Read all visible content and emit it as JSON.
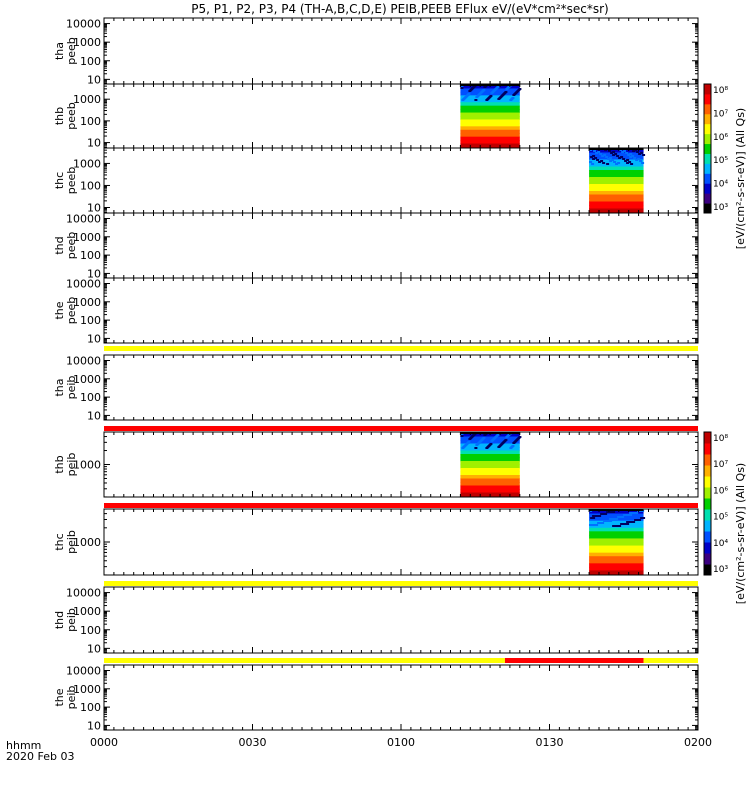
{
  "chart_data": {
    "type": "heatmap",
    "title": "P5, P1, P2, P3, P4 (TH-A,B,C,D,E) PEIB,PEEB EFlux eV/(eV*cm²*sec*sr)",
    "time_axis": {
      "label_line1": "hhmm",
      "label_line2": "2020 Feb 03",
      "ticks": [
        "0000",
        "0030",
        "0100",
        "0130",
        "0200"
      ],
      "range_minutes": [
        0,
        120
      ]
    },
    "panels": [
      {
        "probe": "tha",
        "instrument": "peeb",
        "ylabel_line1": "tha",
        "ylabel_line2": "peeb",
        "yticks": [
          "10",
          "100",
          "1000",
          "10000"
        ],
        "ylog_range": [
          0.75,
          4.3
        ],
        "data_spans_minutes": []
      },
      {
        "probe": "thb",
        "instrument": "peeb",
        "ylabel_line1": "thb",
        "ylabel_line2": "peeb",
        "yticks": [
          "10",
          "100",
          "1000"
        ],
        "ylog_range": [
          0.75,
          3.7
        ],
        "data_spans_minutes": [
          [
            72,
            84
          ]
        ]
      },
      {
        "probe": "thc",
        "instrument": "peeb",
        "ylabel_line1": "thc",
        "ylabel_line2": "peeb",
        "yticks": [
          "10",
          "100",
          "1000"
        ],
        "ylog_range": [
          0.75,
          3.7
        ],
        "data_spans_minutes": [
          [
            98,
            109
          ]
        ]
      },
      {
        "probe": "thd",
        "instrument": "peeb",
        "ylabel_line1": "thd",
        "ylabel_line2": "peeb",
        "yticks": [
          "10",
          "100",
          "1000",
          "10000"
        ],
        "ylog_range": [
          0.75,
          4.3
        ],
        "data_spans_minutes": []
      },
      {
        "probe": "the",
        "instrument": "peeb",
        "ylabel_line1": "the",
        "ylabel_line2": "peeb",
        "yticks": [
          "10",
          "100",
          "1000",
          "10000"
        ],
        "ylog_range": [
          0.75,
          4.3
        ],
        "data_spans_minutes": []
      },
      {
        "probe": "tha",
        "instrument": "peib",
        "ylabel_line1": "tha",
        "ylabel_line2": "peib",
        "yticks": [
          "10",
          "100",
          "1000",
          "10000"
        ],
        "ylog_range": [
          0.75,
          4.3
        ],
        "data_spans_minutes": []
      },
      {
        "probe": "thb",
        "instrument": "peib",
        "ylabel_line1": "thb",
        "ylabel_line2": "peib",
        "yticks": [
          "1000"
        ],
        "ylog_range": [
          2.3,
          3.7
        ],
        "data_spans_minutes": [
          [
            72,
            84
          ]
        ]
      },
      {
        "probe": "thc",
        "instrument": "peib",
        "ylabel_line1": "thc",
        "ylabel_line2": "peib",
        "yticks": [
          "1000"
        ],
        "ylog_range": [
          2.3,
          3.7
        ],
        "data_spans_minutes": [
          [
            98,
            109
          ]
        ]
      },
      {
        "probe": "thd",
        "instrument": "peib",
        "ylabel_line1": "thd",
        "ylabel_line2": "peib",
        "yticks": [
          "10",
          "100",
          "1000",
          "10000"
        ],
        "ylog_range": [
          0.75,
          4.3
        ],
        "data_spans_minutes": []
      },
      {
        "probe": "the",
        "instrument": "peib",
        "ylabel_line1": "the",
        "ylabel_line2": "peib",
        "yticks": [
          "10",
          "100",
          "1000",
          "10000"
        ],
        "ylog_range": [
          0.75,
          4.3
        ],
        "data_spans_minutes": []
      }
    ],
    "status_bars": [
      {
        "before_panel": 4,
        "segments": [
          {
            "from": 0,
            "to": 120,
            "color": "#ffff00"
          }
        ]
      },
      {
        "before_panel": 6,
        "segments": [
          {
            "from": 0,
            "to": 120,
            "color": "#ff0000"
          }
        ]
      },
      {
        "before_panel": 7,
        "segments": [
          {
            "from": 0,
            "to": 120,
            "color": "#ff0000"
          }
        ]
      },
      {
        "before_panel": 8,
        "segments": [
          {
            "from": 0,
            "to": 120,
            "color": "#ffff00"
          }
        ]
      },
      {
        "before_panel": 9,
        "segments": [
          {
            "from": 0,
            "to": 81,
            "color": "#ffff00"
          },
          {
            "from": 81,
            "to": 109,
            "color": "#ff0000"
          },
          {
            "from": 109,
            "to": 120,
            "color": "#ffff00"
          }
        ]
      }
    ],
    "colorbars": [
      {
        "label": "[eV/(cm²-s-sr-eV)] (All Qs)",
        "ticks": [
          "10³",
          "10⁴",
          "10⁵",
          "10⁶",
          "10⁷",
          "10⁸"
        ]
      },
      {
        "label": "[eV/(cm²-s-sr-eV)] (All Qs)",
        "ticks": [
          "10³",
          "10⁴",
          "10⁵",
          "10⁶",
          "10⁷",
          "10⁸"
        ]
      }
    ],
    "colorscale": [
      "#000000",
      "#3a0080",
      "#0000c8",
      "#0050ff",
      "#00b4ff",
      "#00e0b0",
      "#00d000",
      "#a0f000",
      "#ffff00",
      "#ffb000",
      "#ff6000",
      "#ff0000",
      "#c00000"
    ]
  }
}
